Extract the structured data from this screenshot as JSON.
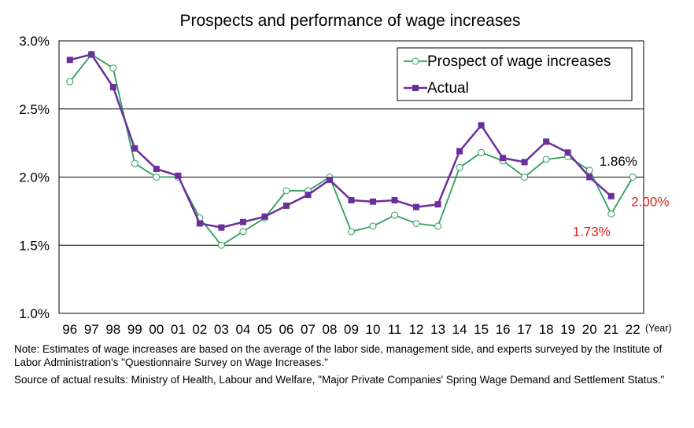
{
  "chart_data": {
    "type": "line",
    "title": "Prospects and performance of wage increases",
    "x_unit": "(Year)",
    "categories": [
      "96",
      "97",
      "98",
      "99",
      "00",
      "01",
      "02",
      "03",
      "04",
      "05",
      "06",
      "07",
      "08",
      "09",
      "10",
      "11",
      "12",
      "13",
      "14",
      "15",
      "16",
      "17",
      "18",
      "19",
      "20",
      "21",
      "22"
    ],
    "y_ticks": [
      "1.0%",
      "1.5%",
      "2.0%",
      "2.5%",
      "3.0%"
    ],
    "ylim": [
      1.0,
      3.0
    ],
    "grid": "horizontal",
    "legend_position": "top-right",
    "series": [
      {
        "name": "Prospect of wage increases",
        "color": "#2e9e5b",
        "marker": "open-circle",
        "values": [
          2.7,
          2.9,
          2.8,
          2.1,
          2.0,
          2.0,
          1.7,
          1.5,
          1.6,
          1.7,
          1.9,
          1.9,
          2.0,
          1.6,
          1.64,
          1.72,
          1.66,
          1.64,
          2.07,
          2.18,
          2.12,
          2.0,
          2.13,
          2.15,
          2.05,
          1.73,
          2.0
        ]
      },
      {
        "name": "Actual",
        "color": "#6b2f9c",
        "marker": "filled-square",
        "values": [
          2.86,
          2.9,
          2.66,
          2.21,
          2.06,
          2.01,
          1.66,
          1.63,
          1.67,
          1.71,
          1.79,
          1.87,
          1.98,
          1.83,
          1.82,
          1.83,
          1.78,
          1.8,
          2.19,
          2.38,
          2.14,
          2.11,
          2.26,
          2.18,
          2.0,
          1.86,
          null
        ]
      }
    ],
    "annotations": [
      {
        "text": "1.86%",
        "color": "#000000"
      },
      {
        "text": "2.00%",
        "color": "#e0201b"
      },
      {
        "text": "1.73%",
        "color": "#e0201b"
      }
    ]
  },
  "notes": {
    "note1": "Note: Estimates of wage increases are based on the average of the labor side, management side, and experts surveyed by the Institute of Labor Administration's \"Questionnaire Survey on Wage Increases.\"",
    "note2": "Source of actual results: Ministry of Health, Labour and Welfare, \"Major Private Companies' Spring Wage Demand and Settlement Status.\""
  }
}
